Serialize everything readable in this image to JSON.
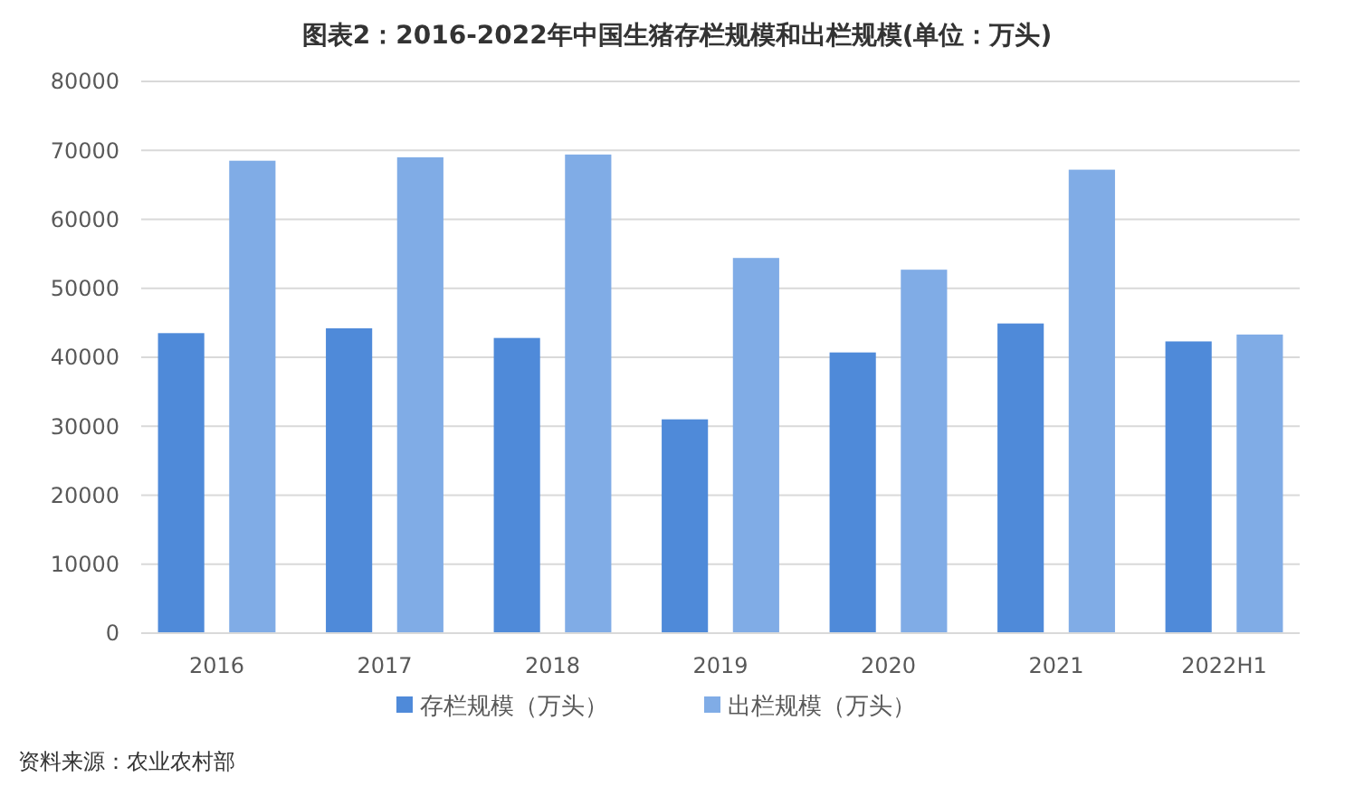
{
  "chart_data": {
    "type": "bar",
    "title": "图表2：2016-2022年中国生猪存栏规模和出栏规模(单位：万头)",
    "categories": [
      "2016",
      "2017",
      "2018",
      "2019",
      "2020",
      "2021",
      "2022H1"
    ],
    "series": [
      {
        "name": "存栏规模（万头）",
        "color": "#4f8ad9",
        "values": [
          43500,
          44200,
          42800,
          31000,
          40700,
          44900,
          42300
        ]
      },
      {
        "name": "出栏规模（万头）",
        "color": "#80ace6",
        "values": [
          68500,
          69000,
          69400,
          54400,
          52700,
          67200,
          43300
        ]
      }
    ],
    "ylim": [
      0,
      80000
    ],
    "yticks": [
      0,
      10000,
      20000,
      30000,
      40000,
      50000,
      60000,
      70000,
      80000
    ],
    "grid": "y",
    "legend": "bottom",
    "annotations": [
      "资料来源：农业农村部"
    ]
  }
}
